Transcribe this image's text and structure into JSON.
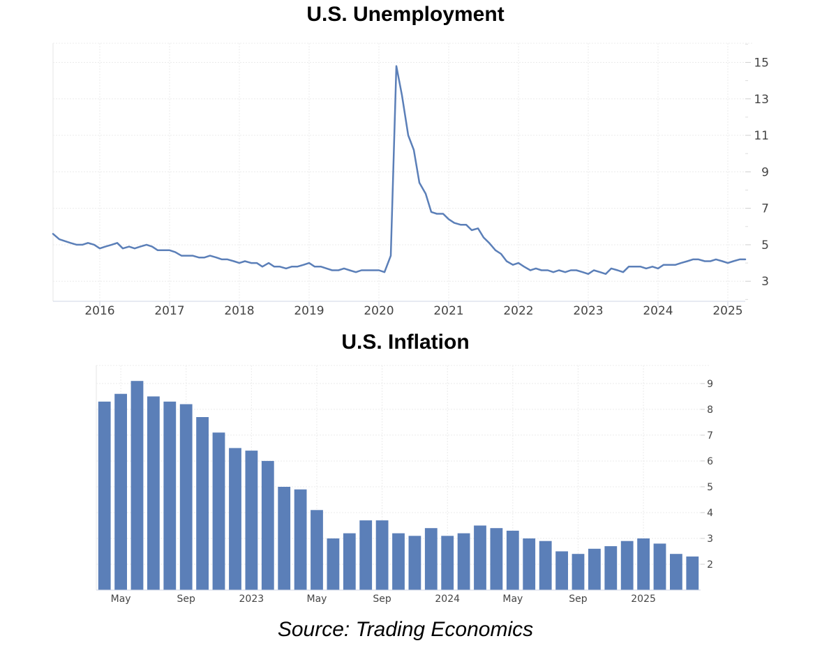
{
  "chart_data": [
    {
      "type": "line",
      "title": "U.S. Unemployment",
      "xlabel": "",
      "ylabel": "",
      "x_tick_labels": [
        "2016",
        "2017",
        "2018",
        "2019",
        "2020",
        "2021",
        "2022",
        "2023",
        "2024",
        "2025"
      ],
      "y_tick_labels": [
        "15",
        "13",
        "11",
        "9",
        "7",
        "5",
        "3"
      ],
      "xlim": [
        2015.33,
        2025.25
      ],
      "ylim": [
        1.9,
        16.05
      ],
      "grid": true,
      "color": "#5b7fb8",
      "series": [
        {
          "x": [
            2015.33,
            2015.42,
            2015.5,
            2015.58,
            2015.67,
            2015.75,
            2015.83,
            2015.92,
            2016.0,
            2016.08,
            2016.17,
            2016.25,
            2016.33,
            2016.42,
            2016.5,
            2016.58,
            2016.67,
            2016.75,
            2016.83,
            2016.92,
            2017.0,
            2017.08,
            2017.17,
            2017.25,
            2017.33,
            2017.42,
            2017.5,
            2017.58,
            2017.67,
            2017.75,
            2017.83,
            2017.92,
            2018.0,
            2018.08,
            2018.17,
            2018.25,
            2018.33,
            2018.42,
            2018.5,
            2018.58,
            2018.67,
            2018.75,
            2018.83,
            2018.92,
            2019.0,
            2019.08,
            2019.17,
            2019.25,
            2019.33,
            2019.42,
            2019.5,
            2019.58,
            2019.67,
            2019.75,
            2019.83,
            2019.92,
            2020.0,
            2020.08,
            2020.17,
            2020.25,
            2020.33,
            2020.42,
            2020.5,
            2020.58,
            2020.67,
            2020.75,
            2020.83,
            2020.92,
            2021.0,
            2021.08,
            2021.17,
            2021.25,
            2021.33,
            2021.42,
            2021.5,
            2021.58,
            2021.67,
            2021.75,
            2021.83,
            2021.92,
            2022.0,
            2022.08,
            2022.17,
            2022.25,
            2022.33,
            2022.42,
            2022.5,
            2022.58,
            2022.67,
            2022.75,
            2022.83,
            2022.92,
            2023.0,
            2023.08,
            2023.17,
            2023.25,
            2023.33,
            2023.42,
            2023.5,
            2023.58,
            2023.67,
            2023.75,
            2023.83,
            2023.92,
            2024.0,
            2024.08,
            2024.17,
            2024.25,
            2024.33,
            2024.42,
            2024.5,
            2024.58,
            2024.67,
            2024.75,
            2024.83,
            2024.92,
            2025.0,
            2025.08,
            2025.17,
            2025.25
          ],
          "y": [
            5.6,
            5.3,
            5.2,
            5.1,
            5.0,
            5.0,
            5.1,
            5.0,
            4.8,
            4.9,
            5.0,
            5.1,
            4.8,
            4.9,
            4.8,
            4.9,
            5.0,
            4.9,
            4.7,
            4.7,
            4.7,
            4.6,
            4.4,
            4.4,
            4.4,
            4.3,
            4.3,
            4.4,
            4.3,
            4.2,
            4.2,
            4.1,
            4.0,
            4.1,
            4.0,
            4.0,
            3.8,
            4.0,
            3.8,
            3.8,
            3.7,
            3.8,
            3.8,
            3.9,
            4.0,
            3.8,
            3.8,
            3.7,
            3.6,
            3.6,
            3.7,
            3.6,
            3.5,
            3.6,
            3.6,
            3.6,
            3.6,
            3.5,
            4.4,
            14.8,
            13.2,
            11.0,
            10.2,
            8.4,
            7.8,
            6.8,
            6.7,
            6.7,
            6.4,
            6.2,
            6.1,
            6.1,
            5.8,
            5.9,
            5.4,
            5.1,
            4.7,
            4.5,
            4.1,
            3.9,
            4.0,
            3.8,
            3.6,
            3.7,
            3.6,
            3.6,
            3.5,
            3.6,
            3.5,
            3.6,
            3.6,
            3.5,
            3.4,
            3.6,
            3.5,
            3.4,
            3.7,
            3.6,
            3.5,
            3.8,
            3.8,
            3.8,
            3.7,
            3.8,
            3.7,
            3.9,
            3.9,
            3.9,
            4.0,
            4.1,
            4.2,
            4.2,
            4.1,
            4.1,
            4.2,
            4.1,
            4.0,
            4.1,
            4.2,
            4.2
          ]
        }
      ]
    },
    {
      "type": "bar",
      "title": "U.S. Inflation",
      "xlabel": "",
      "ylabel": "",
      "x_tick_labels": [
        "May",
        "Sep",
        "2023",
        "May",
        "Sep",
        "2024",
        "May",
        "Sep",
        "2025"
      ],
      "y_tick_labels": [
        "9",
        "8",
        "7",
        "6",
        "5",
        "4",
        "3",
        "2"
      ],
      "ylim": [
        1.0,
        9.7
      ],
      "grid": true,
      "color": "#5b7fb8",
      "categories": [
        "2022-04",
        "2022-05",
        "2022-06",
        "2022-07",
        "2022-08",
        "2022-09",
        "2022-10",
        "2022-11",
        "2022-12",
        "2023-01",
        "2023-02",
        "2023-03",
        "2023-04",
        "2023-05",
        "2023-06",
        "2023-07",
        "2023-08",
        "2023-09",
        "2023-10",
        "2023-11",
        "2023-12",
        "2024-01",
        "2024-02",
        "2024-03",
        "2024-04",
        "2024-05",
        "2024-06",
        "2024-07",
        "2024-08",
        "2024-09",
        "2024-10",
        "2024-11",
        "2024-12",
        "2025-01",
        "2025-02",
        "2025-03",
        "2025-04"
      ],
      "values": [
        8.3,
        8.6,
        9.1,
        8.5,
        8.3,
        8.2,
        7.7,
        7.1,
        6.5,
        6.4,
        6.0,
        5.0,
        4.9,
        4.1,
        3.0,
        3.2,
        3.7,
        3.7,
        3.2,
        3.1,
        3.4,
        3.1,
        3.2,
        3.5,
        3.4,
        3.3,
        3.0,
        2.9,
        2.5,
        2.4,
        2.6,
        2.7,
        2.9,
        3.0,
        2.8,
        2.4,
        2.3
      ]
    }
  ],
  "source": "Source: Trading Economics"
}
